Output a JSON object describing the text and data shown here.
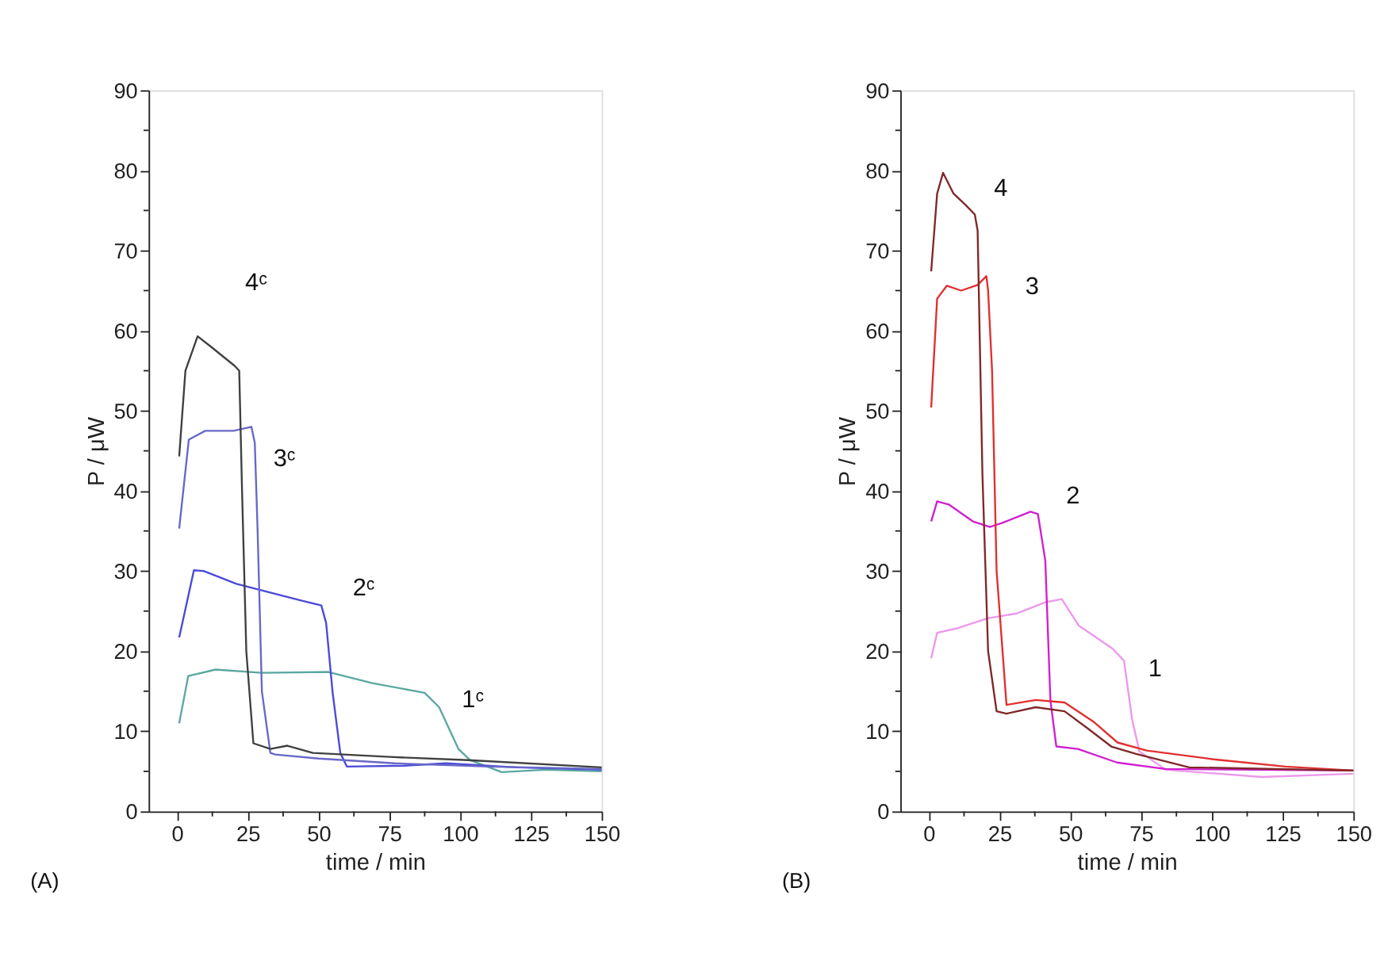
{
  "chart_data": [
    {
      "type": "line",
      "xlabel": "time / min",
      "ylabel": "P / μW",
      "xlim": [
        -10,
        150
      ],
      "ylim": [
        0,
        90
      ],
      "xticks": [
        0,
        {
          "value": 12.5,
          "label": null
        },
        25,
        {
          "value": 37.5,
          "label": null
        },
        50,
        {
          "value": 62.5,
          "label": null
        },
        75,
        {
          "value": 87.5,
          "label": null
        },
        100,
        {
          "value": 112.5,
          "label": null
        },
        125,
        {
          "value": 137.5,
          "label": null
        },
        150
      ],
      "yticks": [
        0,
        {
          "value": 5,
          "label": null
        },
        10,
        {
          "value": 15,
          "label": null
        },
        20,
        {
          "value": 25,
          "label": null
        },
        30,
        {
          "value": 35,
          "label": null
        },
        40,
        {
          "value": 45,
          "label": null
        },
        50,
        {
          "value": 55,
          "label": null
        },
        60,
        {
          "value": 65,
          "label": null
        },
        70,
        {
          "value": 75,
          "label": null
        },
        80,
        {
          "value": 85,
          "label": null
        },
        90
      ],
      "grid": false,
      "marker": "none",
      "line_style": "solid",
      "series": [
        {
          "color": "#5aa8a0",
          "x": [
            0.8,
            4,
            13.6,
            30,
            53.5,
            69,
            87.5,
            92.6,
            99.4,
            103.5,
            114.7,
            130,
            150
          ],
          "values": [
            11,
            16.9,
            17.7,
            17.3,
            17.4,
            16,
            14.8,
            13,
            7.8,
            6.4,
            4.9,
            5.2,
            5
          ]
        },
        {
          "color": "#4a4ad8",
          "x": [
            0.8,
            6,
            9.4,
            21,
            43,
            51,
            52.7,
            55,
            57.7,
            60,
            80,
            95,
            120,
            150
          ],
          "values": [
            21.7,
            30.1,
            30,
            28.4,
            26.4,
            25.7,
            23.5,
            14.8,
            7.3,
            5.6,
            5.7,
            6,
            5.5,
            5.2
          ]
        },
        {
          "color": "#6868c8",
          "x": [
            0.8,
            4.2,
            10,
            20,
            26.3,
            27.5,
            28.5,
            30,
            33,
            34.7,
            50,
            77,
            110,
            150
          ],
          "values": [
            35.3,
            46.4,
            47.5,
            47.5,
            48,
            46,
            35,
            15,
            7.3,
            7.1,
            6.6,
            6,
            5.6,
            5.3
          ]
        },
        {
          "color": "#404040",
          "x": [
            0.8,
            3,
            7.3,
            12,
            20.4,
            22,
            23,
            24.5,
            27,
            33,
            39,
            48,
            75,
            103,
            150
          ],
          "values": [
            44.3,
            55,
            59.3,
            58,
            55.6,
            55,
            40,
            20,
            8.5,
            7.8,
            8.2,
            7.3,
            6.8,
            6.4,
            5.5
          ]
        }
      ],
      "annotations": [
        "4ᶜ",
        "3ᶜ",
        "2ᶜ",
        "1ᶜ",
        "(A)"
      ]
    },
    {
      "type": "line",
      "xlabel": "time / min",
      "ylabel": "P / μW",
      "xlim": [
        -10,
        150
      ],
      "ylim": [
        0,
        90
      ],
      "xticks": [
        0,
        {
          "value": 12.5,
          "label": null
        },
        25,
        {
          "value": 37.5,
          "label": null
        },
        50,
        {
          "value": 62.5,
          "label": null
        },
        75,
        {
          "value": 87.5,
          "label": null
        },
        100,
        {
          "value": 112.5,
          "label": null
        },
        125,
        {
          "value": 137.5,
          "label": null
        },
        150
      ],
      "yticks": [
        0,
        {
          "value": 5,
          "label": null
        },
        10,
        {
          "value": 15,
          "label": null
        },
        20,
        {
          "value": 25,
          "label": null
        },
        30,
        {
          "value": 35,
          "label": null
        },
        40,
        {
          "value": 45,
          "label": null
        },
        50,
        {
          "value": 55,
          "label": null
        },
        60,
        {
          "value": 65,
          "label": null
        },
        70,
        {
          "value": 75,
          "label": null
        },
        80,
        {
          "value": 85,
          "label": null
        },
        90
      ],
      "grid": false,
      "marker": "none",
      "line_style": "solid",
      "series": [
        {
          "color": "#ec98ec",
          "x": [
            0.9,
            3,
            10.6,
            20.8,
            31,
            41.2,
            47,
            53,
            65,
            69,
            71.8,
            74.4,
            83.7,
            117.7,
            150
          ],
          "values": [
            19.1,
            22.3,
            22.9,
            24.1,
            24.7,
            26.1,
            26.5,
            23.2,
            20.3,
            18.8,
            11.6,
            7.5,
            5.2,
            4.3,
            4.7
          ]
        },
        {
          "color": "#d020d0",
          "x": [
            0.9,
            3,
            7.1,
            15.6,
            21.6,
            25.9,
            36,
            38.6,
            41.2,
            43,
            45.1,
            52.7,
            66.5,
            83.5,
            150
          ],
          "values": [
            36.2,
            38.7,
            38.3,
            36.2,
            35.5,
            36,
            37.4,
            37.1,
            31.3,
            13.9,
            8.1,
            7.8,
            6.1,
            5.3,
            5.1
          ]
        },
        {
          "color": "#e03030",
          "x": [
            0.9,
            3,
            6.4,
            11.5,
            17.3,
            20.4,
            21,
            22.4,
            24,
            27.5,
            37.8,
            48,
            58.2,
            66.7,
            77,
            100.7,
            126,
            150
          ],
          "values": [
            50.4,
            64,
            65.6,
            65,
            65.7,
            66.8,
            65,
            55,
            30,
            13.3,
            13.9,
            13.6,
            11.2,
            8.6,
            7.6,
            6.5,
            5.6,
            5.1
          ]
        },
        {
          "color": "#802828",
          "x": [
            0.9,
            3,
            5.1,
            8.8,
            13,
            16.3,
            17.3,
            19,
            21,
            24,
            27.5,
            37.8,
            48,
            56,
            64.5,
            73,
            92,
            150
          ],
          "values": [
            67.4,
            77.1,
            79.7,
            77.1,
            75.7,
            74.5,
            72.5,
            42,
            20,
            12.5,
            12.2,
            13,
            12.5,
            10.4,
            8.1,
            7.2,
            5.5,
            5.1
          ]
        }
      ],
      "annotations": [
        "4",
        "3",
        "2",
        "1",
        "(B)"
      ]
    }
  ]
}
